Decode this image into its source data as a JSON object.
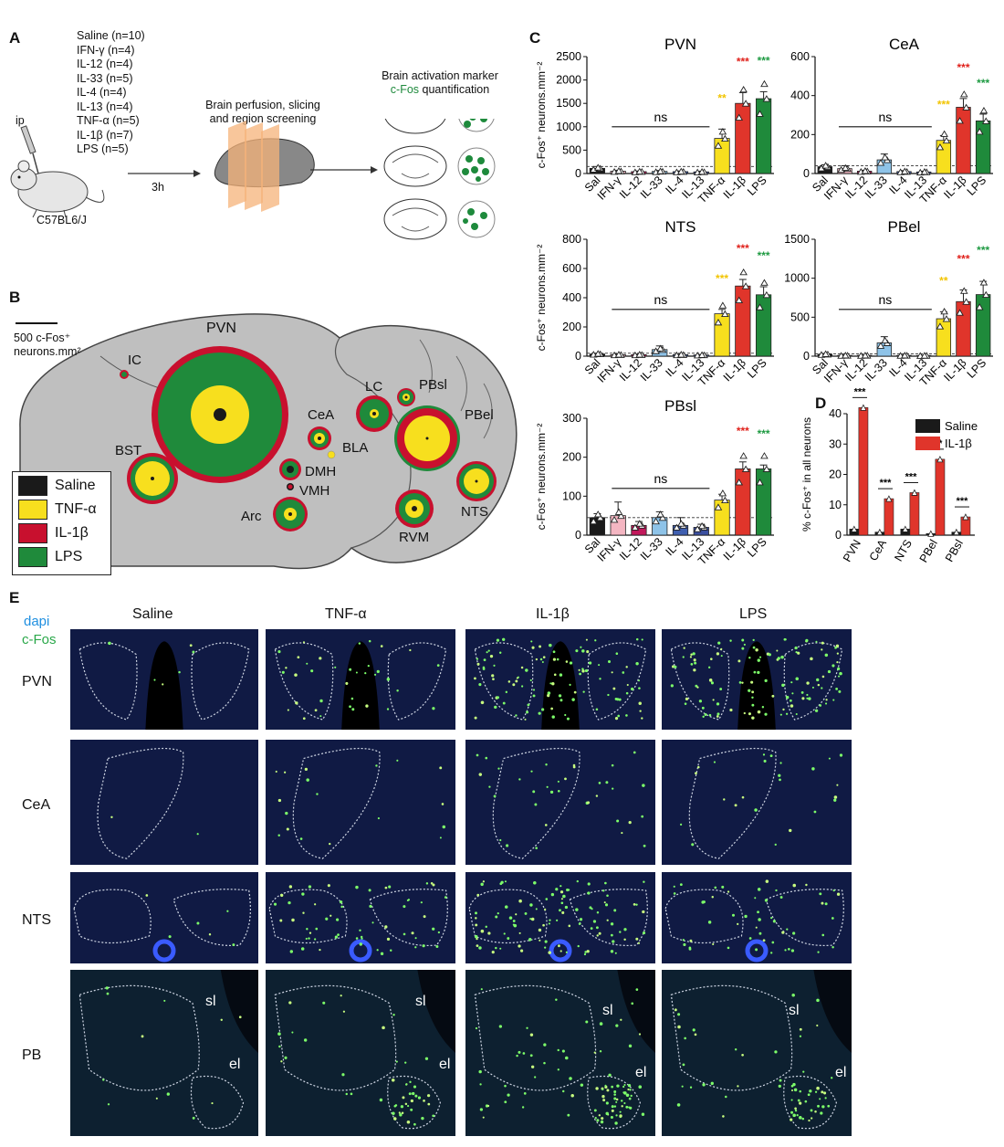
{
  "panels": {
    "A": "A",
    "B": "B",
    "C": "C",
    "D": "D",
    "E": "E"
  },
  "panel_a": {
    "groups": [
      "Saline (n=10)",
      "IFN-γ (n=4)",
      "IL-12 (n=4)",
      "IL-33 (n=5)",
      "IL-4 (n=4)",
      "IL-13 (n=4)",
      "TNF-α (n=5)",
      "IL-1β (n=7)",
      "LPS (n=5)"
    ],
    "route": "ip",
    "strain": "C57BL6/J",
    "time": "3h",
    "step2": [
      "Brain perfusion, slicing",
      "and region screening"
    ],
    "step3_line1": "Brain activation marker",
    "step3_cfos": "c-Fos",
    "step3_rest": " quantification",
    "colors": {
      "cfos_green": "#1e8a3c",
      "slice_orange": "#f5b37a"
    }
  },
  "panel_b": {
    "scale_label": [
      "500 c-Fos⁺",
      "neurons.mm²"
    ],
    "regions": [
      "PVN",
      "IC",
      "CeA",
      "BLA",
      "DMH",
      "VMH",
      "Arc",
      "BST",
      "LC",
      "PBsl",
      "PBel",
      "NTS",
      "RVM"
    ],
    "legend": [
      {
        "label": "Saline",
        "color": "#1a1a1a"
      },
      {
        "label": "TNF-α",
        "color": "#f7df1e"
      },
      {
        "label": "IL-1β",
        "color": "#c8102e"
      },
      {
        "label": "LPS",
        "color": "#1f8a3b"
      }
    ]
  },
  "chart_data": [
    {
      "type": "bar",
      "title": "PVN",
      "ylabel": "c-Fos⁺ neurons.mm⁻²",
      "ylim": [
        0,
        2500
      ],
      "yticks": [
        0,
        500,
        1000,
        1500,
        2000,
        2500
      ],
      "categories": [
        "Sal",
        "IFN-γ",
        "IL-12",
        "IL-33",
        "IL-4",
        "IL-13",
        "TNF-α",
        "IL-1β",
        "LPS"
      ],
      "values": [
        110,
        50,
        40,
        45,
        40,
        35,
        750,
        1500,
        1600
      ],
      "errors": [
        40,
        20,
        15,
        20,
        15,
        15,
        200,
        230,
        150
      ],
      "sig": [
        {
          "cat": "TNF-α",
          "text": "**",
          "color": "#f2c400"
        },
        {
          "cat": "IL-1β",
          "text": "***",
          "color": "#e0211b"
        },
        {
          "cat": "LPS",
          "text": "***",
          "color": "#1e9a42"
        }
      ],
      "ns": "ns",
      "baseline": 150
    },
    {
      "type": "bar",
      "title": "CeA",
      "ylabel": "",
      "ylim": [
        0,
        600
      ],
      "yticks": [
        0,
        200,
        400,
        600
      ],
      "categories": [
        "Sal",
        "IFN-γ",
        "IL-12",
        "IL-33",
        "IL-4",
        "IL-13",
        "TNF-α",
        "IL-1β",
        "LPS"
      ],
      "values": [
        35,
        25,
        12,
        70,
        10,
        8,
        170,
        340,
        270
      ],
      "errors": [
        10,
        15,
        5,
        30,
        5,
        4,
        25,
        45,
        35
      ],
      "sig": [
        {
          "cat": "TNF-α",
          "text": "***",
          "color": "#f2c400"
        },
        {
          "cat": "IL-1β",
          "text": "***",
          "color": "#e0211b"
        },
        {
          "cat": "LPS",
          "text": "***",
          "color": "#1e9a42"
        }
      ],
      "ns": "ns",
      "baseline": 40
    },
    {
      "type": "bar",
      "title": "NTS",
      "ylabel": "c-Fos⁺ neurons.mm⁻²",
      "ylim": [
        0,
        800
      ],
      "yticks": [
        0,
        200,
        400,
        600,
        800
      ],
      "categories": [
        "Sal",
        "IFN-γ",
        "IL-12",
        "IL-33",
        "IL-4",
        "IL-13",
        "TNF-α",
        "IL-1β",
        "LPS"
      ],
      "values": [
        15,
        10,
        10,
        45,
        10,
        8,
        290,
        480,
        420
      ],
      "errors": [
        5,
        5,
        4,
        25,
        4,
        3,
        30,
        45,
        55
      ],
      "sig": [
        {
          "cat": "TNF-α",
          "text": "***",
          "color": "#f2c400"
        },
        {
          "cat": "IL-1β",
          "text": "***",
          "color": "#e0211b"
        },
        {
          "cat": "LPS",
          "text": "***",
          "color": "#1e9a42"
        }
      ],
      "ns": "ns",
      "baseline": 20
    },
    {
      "type": "bar",
      "title": "PBel",
      "ylabel": "",
      "ylim": [
        0,
        1500
      ],
      "yticks": [
        0,
        500,
        1000,
        1500
      ],
      "categories": [
        "Sal",
        "IFN-γ",
        "IL-12",
        "IL-33",
        "IL-4",
        "IL-13",
        "TNF-α",
        "IL-1β",
        "LPS"
      ],
      "values": [
        25,
        10,
        10,
        170,
        10,
        8,
        480,
        700,
        790
      ],
      "errors": [
        10,
        5,
        4,
        80,
        4,
        3,
        90,
        150,
        170
      ],
      "sig": [
        {
          "cat": "TNF-α",
          "text": "**",
          "color": "#f2c400"
        },
        {
          "cat": "IL-1β",
          "text": "***",
          "color": "#e0211b"
        },
        {
          "cat": "LPS",
          "text": "***",
          "color": "#1e9a42"
        }
      ],
      "ns": "ns",
      "baseline": 30
    },
    {
      "type": "bar",
      "title": "PBsl",
      "ylabel": "c-Fos⁺ neurons.mm⁻²",
      "ylim": [
        0,
        300
      ],
      "yticks": [
        0,
        100,
        200,
        300
      ],
      "categories": [
        "Sal",
        "IFN-γ",
        "IL-12",
        "IL-33",
        "IL-4",
        "IL-13",
        "TNF-α",
        "IL-1β",
        "LPS"
      ],
      "values": [
        45,
        50,
        25,
        45,
        25,
        20,
        90,
        170,
        170
      ],
      "errors": [
        10,
        35,
        10,
        15,
        20,
        8,
        15,
        18,
        10
      ],
      "sig": [
        {
          "cat": "IL-1β",
          "text": "***",
          "color": "#e0211b"
        },
        {
          "cat": "LPS",
          "text": "***",
          "color": "#1e9a42"
        }
      ],
      "ns": "ns",
      "baseline": 45
    },
    {
      "type": "bar",
      "title": "",
      "ylabel": "% c-Fos⁺ in all neurons",
      "ylim": [
        0,
        40
      ],
      "yticks": [
        0,
        10,
        20,
        30,
        40
      ],
      "categories": [
        "PVN",
        "CeA",
        "NTS",
        "PBel",
        "PBsl"
      ],
      "series": [
        {
          "name": "Saline",
          "values": [
            2,
            1,
            2,
            0.5,
            1
          ]
        },
        {
          "name": "IL-1β",
          "values": [
            42,
            12,
            14,
            25,
            6
          ]
        }
      ],
      "sig": "***",
      "legend_position": "top-right"
    }
  ],
  "panel_e": {
    "stain_dapi": "dapi",
    "stain_cfos": "c-Fos",
    "columns": [
      "Saline",
      "TNF-α",
      "IL-1β",
      "LPS"
    ],
    "rows": [
      "PVN",
      "CeA",
      "NTS",
      "PB"
    ],
    "pb_labels": {
      "sl": "sl",
      "el": "el"
    }
  }
}
